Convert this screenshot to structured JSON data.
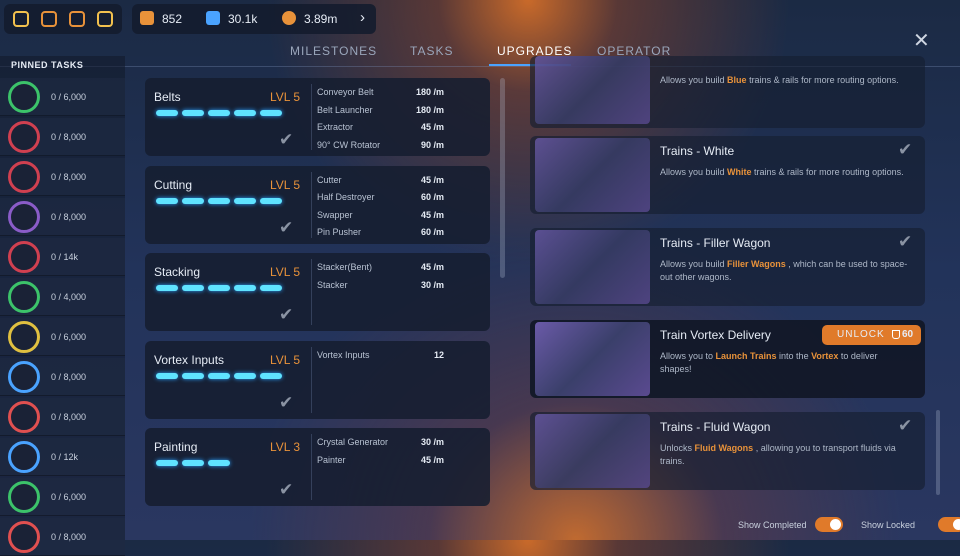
{
  "resources": [
    "852",
    "30.1k",
    "3.89m"
  ],
  "tabs": [
    "MILESTONES",
    "TASKS",
    "UPGRADES",
    "OPERATOR"
  ],
  "active_tab": 2,
  "pinned": {
    "title": "PINNED TASKS",
    "tasks": [
      "0 / 6,000",
      "0 / 8,000",
      "0 / 8,000",
      "0 / 8,000",
      "0 / 14k",
      "0 / 4,000",
      "0 / 6,000",
      "0 / 8,000",
      "0 / 8,000",
      "0 / 12k",
      "0 / 6,000",
      "0 / 8,000"
    ]
  },
  "upgrades": [
    {
      "name": "Belts",
      "level": "LVL 5",
      "pips": 5,
      "stats": [
        [
          "Conveyor Belt",
          "180 /m"
        ],
        [
          "Belt Launcher",
          "180 /m"
        ],
        [
          "Extractor",
          "45 /m"
        ],
        [
          "90° CW Rotator",
          "90 /m"
        ]
      ]
    },
    {
      "name": "Cutting",
      "level": "LVL 5",
      "pips": 5,
      "stats": [
        [
          "Cutter",
          "45 /m"
        ],
        [
          "Half Destroyer",
          "60 /m"
        ],
        [
          "Swapper",
          "45 /m"
        ],
        [
          "Pin Pusher",
          "60 /m"
        ]
      ]
    },
    {
      "name": "Stacking",
      "level": "LVL 5",
      "pips": 5,
      "stats": [
        [
          "Stacker(Bent)",
          "45 /m"
        ],
        [
          "Stacker",
          "30 /m"
        ]
      ]
    },
    {
      "name": "Vortex Inputs",
      "level": "LVL 5",
      "pips": 5,
      "stats": [
        [
          "Vortex Inputs",
          "12"
        ]
      ]
    },
    {
      "name": "Painting",
      "level": "LVL 3",
      "pips": 3,
      "stats": [
        [
          "Crystal Generator",
          "30 /m"
        ],
        [
          "Painter",
          "45 /m"
        ]
      ]
    }
  ],
  "unlocks": [
    {
      "title": "",
      "desc": [
        "Allows you build ",
        "Blue",
        " trains & rails for more routing options."
      ]
    },
    {
      "title": "Trains - White",
      "desc": [
        "Allows you build ",
        "White",
        " trains & rails for more routing options."
      ]
    },
    {
      "title": "Trains - Filler Wagon",
      "desc": [
        "Allows you build ",
        "Filler Wagons",
        " , which can be used to space-out other wagons."
      ]
    },
    {
      "title": "Train Vortex Delivery",
      "desc": [
        "Allows you to ",
        "Launch Trains",
        " into the ",
        "Vortex",
        " to deliver shapes!"
      ],
      "button": "UNLOCK",
      "cost": "60"
    },
    {
      "title": "Trains - Fluid Wagon",
      "desc": [
        "Unlocks ",
        "Fluid Wagons",
        " , allowing you to transport fluids via trains."
      ]
    }
  ],
  "toggles": [
    "Show Completed",
    "Show Locked"
  ]
}
